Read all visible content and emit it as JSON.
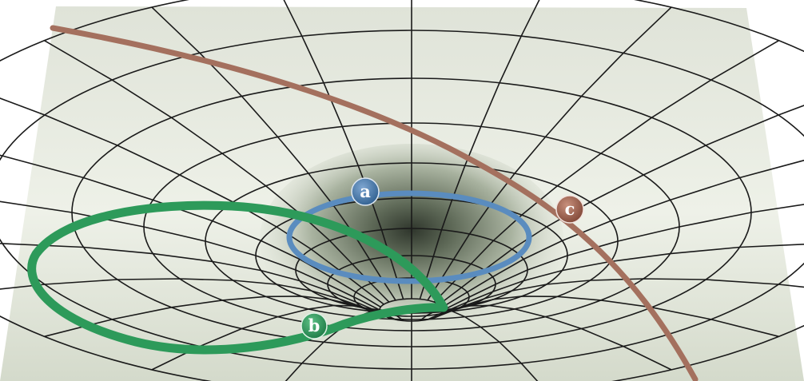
{
  "diagram": {
    "markers": [
      {
        "id": "a",
        "label": "a",
        "color": "#4f7fb3"
      },
      {
        "id": "b",
        "label": "b",
        "color": "#2f9a5c"
      },
      {
        "id": "c",
        "label": "c",
        "color": "#a0604e"
      }
    ],
    "colors": {
      "surface_light": "#e8ece2",
      "surface_mid": "#c9d0c0",
      "surface_dark": "#3e463a",
      "grid_line": "#1a1a1a",
      "orbit_a": "#5a8cbf",
      "orbit_b": "#2d9a5a",
      "orbit_c": "#a4705e"
    }
  }
}
